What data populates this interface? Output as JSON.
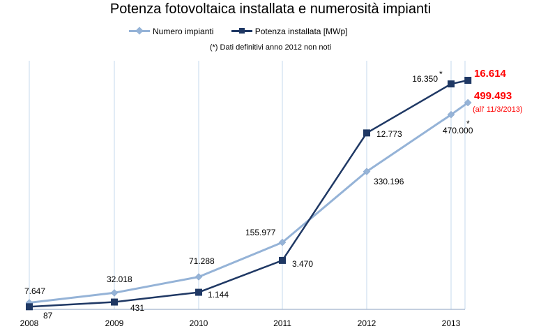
{
  "chart_data": {
    "type": "line",
    "title": "Potenza fotovoltaica installata e numerosità impianti",
    "note": "(*) Dati definitivi anno 2012 non noti",
    "categories": [
      "2008",
      "2009",
      "2010",
      "2011",
      "2012",
      "2013"
    ],
    "series": [
      {
        "name": "Numero impianti",
        "color": "#95b3d7",
        "marker": "diamond",
        "x": [
          2008,
          2009,
          2010,
          2011,
          2012,
          2013,
          2013.2
        ],
        "values": [
          7647,
          32018,
          71288,
          155977,
          330196,
          470000,
          499493
        ],
        "labels": [
          "7.647",
          "32.018",
          "71.288",
          "155.977",
          "330.196",
          "470.000",
          "499.493"
        ]
      },
      {
        "name": "Potenza installata [MWp]",
        "color": "#1f3864",
        "marker": "square",
        "x": [
          2008,
          2009,
          2010,
          2011,
          2012,
          2013,
          2013.2
        ],
        "values": [
          87,
          431,
          1144,
          3470,
          12773,
          16350,
          16614
        ],
        "labels": [
          "87",
          "431",
          "1.144",
          "3.470",
          "12.773",
          "16.350",
          "16.614"
        ]
      }
    ],
    "annotations": {
      "asterisk": "*",
      "date_note": "(all' 11/3/2013)",
      "highlight_color": "#ff0000"
    },
    "grid": "vertical",
    "legend_position": "top"
  }
}
